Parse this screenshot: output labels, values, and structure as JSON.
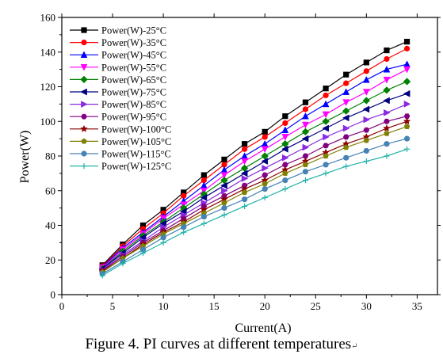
{
  "caption": {
    "text": "Figure 4. PI curves at different temperatures",
    "return_mark": "↵"
  },
  "chart_data": {
    "type": "line",
    "xlabel": "Current(A)",
    "ylabel": "Power(W)",
    "xlim": [
      0,
      37
    ],
    "ylim": [
      0,
      160
    ],
    "xticks": [
      0,
      5,
      10,
      15,
      20,
      25,
      30,
      35
    ],
    "yticks": [
      0,
      20,
      40,
      60,
      80,
      100,
      120,
      140,
      160
    ],
    "grid": false,
    "legend_position": "top-left",
    "x": [
      4,
      6,
      8,
      10,
      12,
      14,
      16,
      18,
      20,
      22,
      24,
      26,
      28,
      30,
      32,
      34
    ],
    "series": [
      {
        "name": "Power(W)-25°C",
        "color": "#000000",
        "marker": "square",
        "values": [
          17,
          29,
          40,
          49,
          59,
          69,
          78,
          87,
          94,
          103,
          111,
          119,
          127,
          134,
          141,
          146
        ]
      },
      {
        "name": "Power(W)-35°C",
        "color": "#ff0000",
        "marker": "circle",
        "values": [
          16.5,
          28,
          38,
          47,
          57,
          66,
          75,
          84,
          91,
          99,
          107,
          115,
          122,
          129,
          136,
          142
        ]
      },
      {
        "name": "Power(W)-45°C",
        "color": "#0000ff",
        "marker": "triangle-up",
        "values": [
          16,
          27,
          36,
          45,
          54,
          63,
          72,
          80,
          87,
          95,
          103,
          110,
          117,
          124,
          130,
          133
        ]
      },
      {
        "name": "Power(W)-55°C",
        "color": "#ff00ff",
        "marker": "triangle-down",
        "values": [
          15.5,
          26,
          35,
          44,
          52,
          60,
          69,
          77,
          84,
          91,
          98,
          104,
          111,
          117,
          124,
          130
        ]
      },
      {
        "name": "Power(W)-65°C",
        "color": "#008000",
        "marker": "diamond",
        "values": [
          15,
          25,
          34,
          42,
          50,
          58,
          66,
          73,
          80,
          87,
          94,
          100,
          106,
          112,
          118,
          123
        ]
      },
      {
        "name": "Power(W)-75°C",
        "color": "#000080",
        "marker": "triangle-left",
        "values": [
          15,
          24,
          33,
          41,
          48,
          56,
          63,
          70,
          77,
          84,
          90,
          96,
          102,
          107,
          112,
          116
        ]
      },
      {
        "name": "Power(W)-85°C",
        "color": "#8a2be2",
        "marker": "triangle-right",
        "values": [
          14.5,
          23,
          31,
          39,
          46,
          53,
          60,
          67,
          73,
          79,
          85,
          91,
          96,
          101,
          105,
          110
        ]
      },
      {
        "name": "Power(W)-95°C",
        "color": "#800080",
        "marker": "hexagon",
        "values": [
          14,
          22,
          30,
          37,
          44,
          51,
          57,
          63,
          69,
          75,
          80,
          86,
          91,
          95,
          100,
          103
        ]
      },
      {
        "name": "Power(W)-100°C",
        "color": "#8b0000",
        "marker": "star",
        "values": [
          13.5,
          21,
          29,
          36,
          42,
          49,
          55,
          61,
          66,
          72,
          77,
          82,
          87,
          91,
          96,
          100
        ]
      },
      {
        "name": "Power(W)-105°C",
        "color": "#808000",
        "marker": "pentagon",
        "values": [
          13,
          21,
          28,
          35,
          41,
          47,
          53,
          59,
          64,
          70,
          75,
          80,
          85,
          89,
          93,
          97
        ]
      },
      {
        "name": "Power(W)-115°C",
        "color": "#4682b4",
        "marker": "circle",
        "values": [
          12,
          19,
          26,
          33,
          39,
          45,
          50,
          55,
          61,
          66,
          71,
          75,
          79,
          83,
          87,
          90
        ]
      },
      {
        "name": "Power(W)-125°C",
        "color": "#20b2aa",
        "marker": "plus",
        "values": [
          11,
          18,
          24,
          30,
          36,
          41,
          46,
          51,
          56,
          61,
          66,
          70,
          74,
          77,
          80,
          84
        ]
      }
    ]
  }
}
